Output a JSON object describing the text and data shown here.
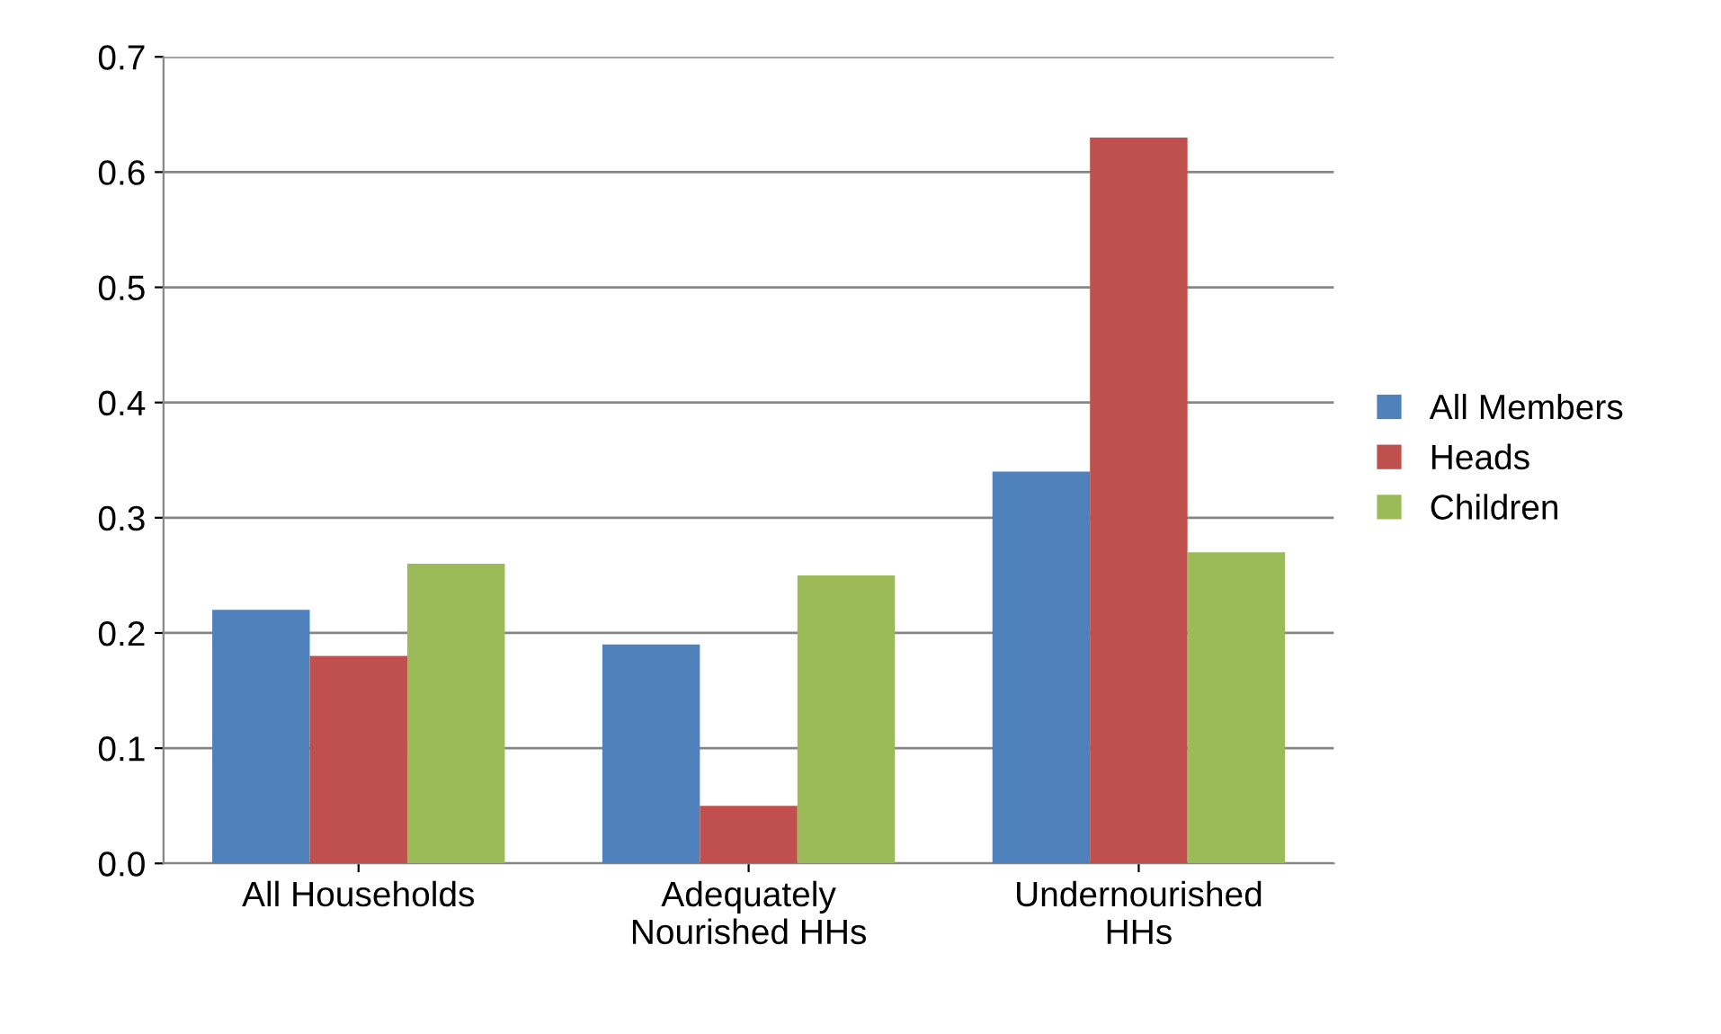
{
  "chart_data": {
    "type": "bar",
    "categories": [
      "All Households",
      "Adequately\nNourished HHs",
      "Undernourished\nHHs"
    ],
    "series": [
      {
        "name": "All Members",
        "color": "#4f81bd",
        "values": [
          0.22,
          0.19,
          0.34
        ]
      },
      {
        "name": "Heads",
        "color": "#c0504d",
        "values": [
          0.18,
          0.05,
          0.63
        ]
      },
      {
        "name": "Children",
        "color": "#9bbb59",
        "values": [
          0.26,
          0.25,
          0.27
        ]
      }
    ],
    "ylim": [
      0,
      0.7
    ],
    "yticks": [
      {
        "value": 0,
        "label": "0.0"
      },
      0.1,
      0.2,
      0.3,
      0.4,
      0.5,
      0.6,
      0.7
    ],
    "grid": "y",
    "legend": "right"
  }
}
